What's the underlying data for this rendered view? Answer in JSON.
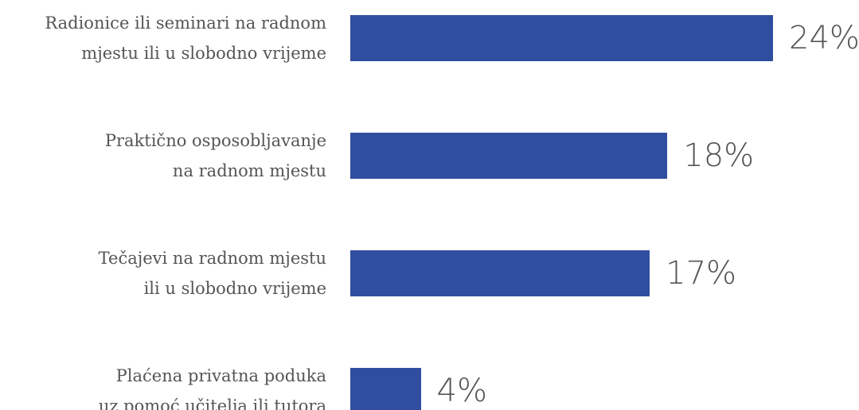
{
  "chart_data": {
    "type": "barh",
    "categories": [
      "Radionice ili seminari na radnom\nmjestu ili u slobodno vrijeme",
      "Praktično osposobljavanje\nna radnom mjestu",
      "Tečajevi na radnom mjestu\nili u slobodno vrijeme",
      "Plaćena privatna poduka\nuz pomoć učitelja ili tutora"
    ],
    "values": [
      24,
      18,
      17,
      4
    ],
    "value_labels": [
      "24%",
      "18%",
      "17%",
      "4%"
    ],
    "color": "#304e9f",
    "xlim": [
      0,
      24
    ]
  }
}
